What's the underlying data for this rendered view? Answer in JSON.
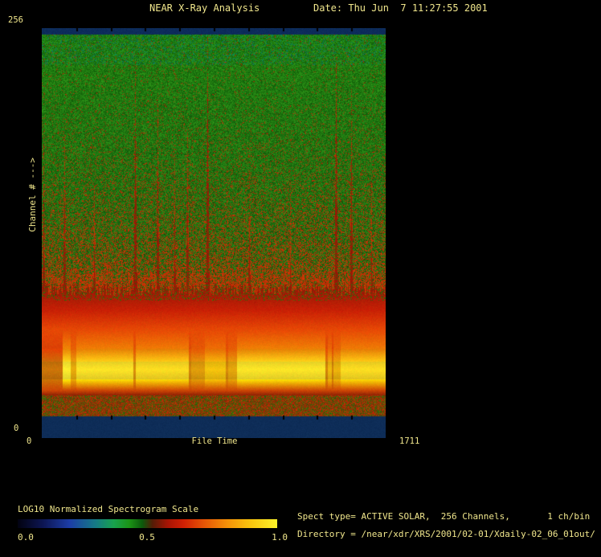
{
  "header": {
    "title": "NEAR X-Ray Analysis",
    "date": "Date: Thu Jun  7 11:27:55 2001"
  },
  "y_axis": {
    "max_label": "256",
    "min_label": "0",
    "title": "Channel # --->"
  },
  "x_axis": {
    "min_label": "0",
    "title": "File Time",
    "max_label": "1711"
  },
  "colorbar": {
    "label": "LOG10 Normalized Spectrogram Scale",
    "tick_labels": [
      "0.0",
      "0.5",
      "1.0"
    ]
  },
  "info": {
    "spect_line": "Spect type= ACTIVE SOLAR,  256 Channels,       1 ch/bin",
    "directory_line": "Directory = /near/xdr/XRS/2001/02-01/Xdaily-02_06_01out/"
  },
  "chart_data": {
    "type": "heatmap",
    "title": "NEAR X-Ray Analysis",
    "date": "Thu Jun 7 11:27:55 2001",
    "xlabel": "File Time",
    "ylabel": "Channel #",
    "x_range": [
      0,
      1711
    ],
    "y_range": [
      0,
      256
    ],
    "colorbar": {
      "label": "LOG10 Normalized Spectrogram Scale",
      "range": [
        0.0,
        1.0
      ],
      "ticks": [
        0.0,
        0.5,
        1.0
      ],
      "gradient": [
        "#020210 0%",
        "#0d1655 10%",
        "#1c3da6 20%",
        "#157a86 30%",
        "#18a24e 37%",
        "#1b9416 43%",
        "#0c5a0c 48%",
        "#551c06 52%",
        "#a81404 58%",
        "#d02004 64%",
        "#e65606 72%",
        "#f59308 81%",
        "#f9c60e 90%",
        "#fdf32a 100%"
      ]
    },
    "spect_type": "ACTIVE SOLAR",
    "channels": 256,
    "channels_per_bin": 1,
    "structure": {
      "comment": "Normalized log10 intensity vs channel: quiet green background in high channels, intense red/orange/yellow continuum in channels ~27-93 peaking near channel 43, speckle band channels 14-27, off-scale navy bands at both channel extremes. time_segments give yellow-band brightness b (0-1) vs File Time; streaks are vertical flare events reaching up to the given channel.",
      "navy_color": "#0d2c58",
      "top_band_channels": [
        252,
        256
      ],
      "bottom_band_channels": [
        0,
        14
      ],
      "noise_band_channels": [
        14,
        27
      ],
      "red_boundary_channel": 93,
      "orange_channel": 70,
      "yellow_peak_channel": 43,
      "time_segments": [
        {
          "t0": 0,
          "t1": 104,
          "b": 0.42
        },
        {
          "t0": 104,
          "t1": 144,
          "b": 1.0
        },
        {
          "t0": 144,
          "t1": 172,
          "b": 0.68
        },
        {
          "t0": 172,
          "t1": 458,
          "b": 0.95
        },
        {
          "t0": 458,
          "t1": 470,
          "b": 0.55
        },
        {
          "t0": 470,
          "t1": 732,
          "b": 0.92
        },
        {
          "t0": 732,
          "t1": 746,
          "b": 0.5
        },
        {
          "t0": 746,
          "t1": 812,
          "b": 0.62
        },
        {
          "t0": 812,
          "t1": 916,
          "b": 0.8
        },
        {
          "t0": 916,
          "t1": 930,
          "b": 0.52
        },
        {
          "t0": 930,
          "t1": 972,
          "b": 0.66
        },
        {
          "t0": 972,
          "t1": 1412,
          "b": 0.96
        },
        {
          "t0": 1412,
          "t1": 1426,
          "b": 0.5
        },
        {
          "t0": 1426,
          "t1": 1444,
          "b": 0.75
        },
        {
          "t0": 1444,
          "t1": 1454,
          "b": 0.48
        },
        {
          "t0": 1454,
          "t1": 1488,
          "b": 0.72
        },
        {
          "t0": 1488,
          "t1": 1711,
          "b": 0.92
        }
      ],
      "streaks": [
        {
          "t": 8,
          "reach": 150,
          "w": 1.5
        },
        {
          "t": 112,
          "reach": 150,
          "w": 2
        },
        {
          "t": 260,
          "reach": 118,
          "w": 1.5
        },
        {
          "t": 464,
          "reach": 195,
          "w": 2.2
        },
        {
          "t": 576,
          "reach": 168,
          "w": 1.8
        },
        {
          "t": 660,
          "reach": 135,
          "w": 1.5
        },
        {
          "t": 724,
          "reach": 152,
          "w": 1.8
        },
        {
          "t": 822,
          "reach": 212,
          "w": 2.2
        },
        {
          "t": 1032,
          "reach": 128,
          "w": 1.5
        },
        {
          "t": 1235,
          "reach": 112,
          "w": 1.2
        },
        {
          "t": 1464,
          "reach": 198,
          "w": 2.2
        },
        {
          "t": 1540,
          "reach": 178,
          "w": 1.8
        },
        {
          "t": 1640,
          "reach": 120,
          "w": 1.2
        }
      ]
    }
  }
}
